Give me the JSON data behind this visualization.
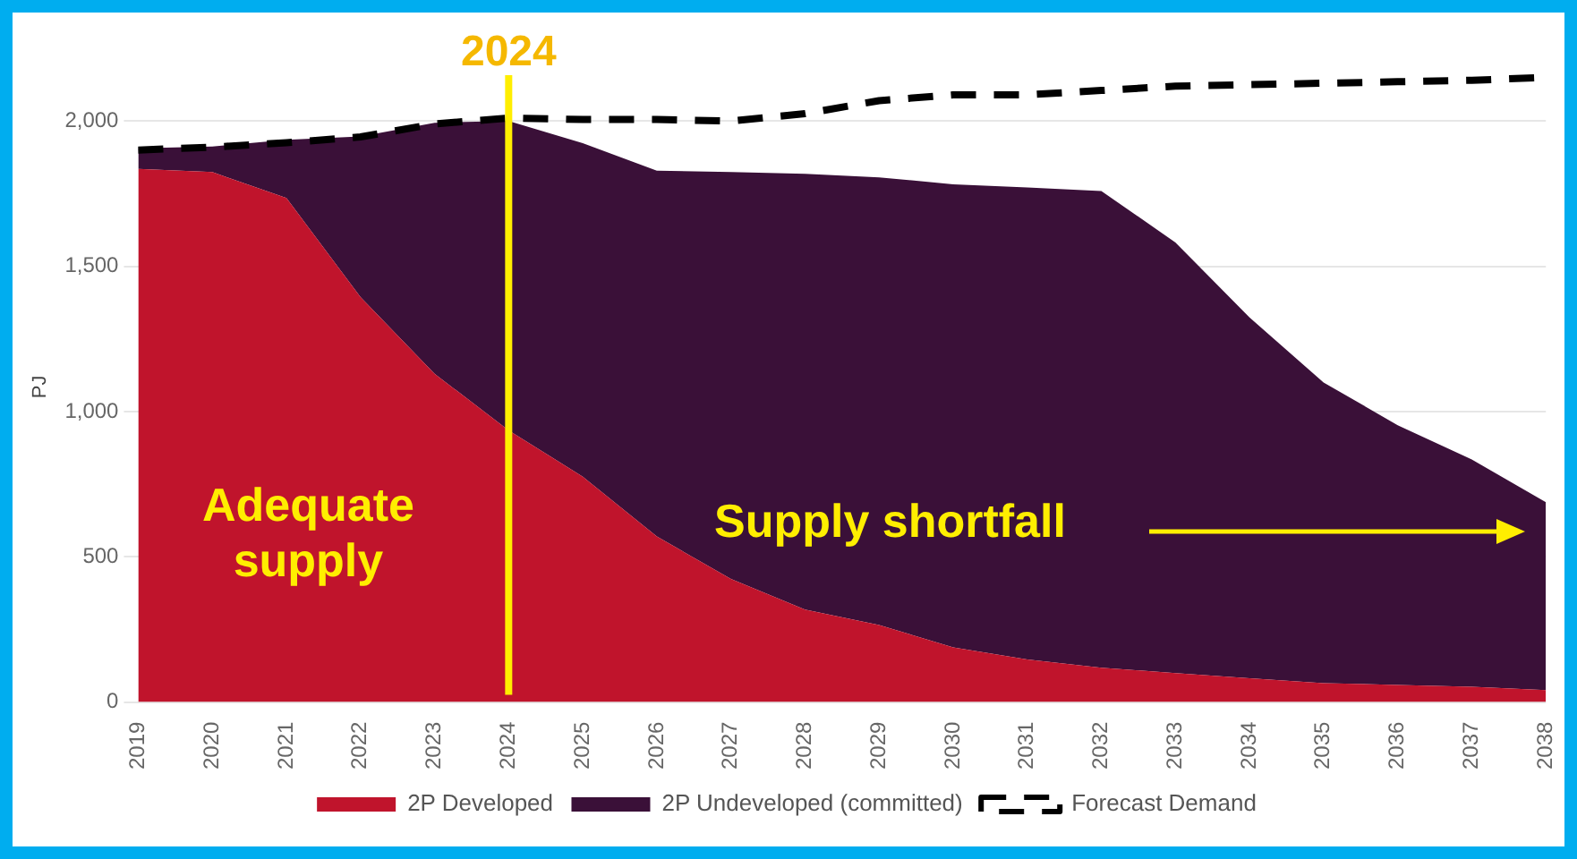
{
  "chart_data": {
    "type": "area",
    "stacked": true,
    "ylabel": "PJ",
    "categories": [
      "2019",
      "2020",
      "2021",
      "2022",
      "2023",
      "2024",
      "2025",
      "2026",
      "2027",
      "2028",
      "2029",
      "2030",
      "2031",
      "2032",
      "2033",
      "2034",
      "2035",
      "2036",
      "2037",
      "2038"
    ],
    "series": [
      {
        "name": "2P Developed",
        "color": "#c0142c",
        "values": [
          1835,
          1824,
          1735,
          1394,
          1130,
          935,
          776,
          570,
          424,
          318,
          265,
          188,
          147,
          118,
          100,
          82,
          65,
          59,
          53,
          41
        ]
      },
      {
        "name": "2P Undeveloped (committed)",
        "color": "#3a1038",
        "values": [
          71,
          88,
          200,
          553,
          864,
          1065,
          1148,
          1259,
          1400,
          1500,
          1541,
          1594,
          1624,
          1641,
          1482,
          1242,
          1035,
          894,
          782,
          647
        ]
      },
      {
        "name": "Forecast Demand",
        "type": "line",
        "color": "#000000",
        "line_style": "dashed",
        "values": [
          1900,
          1910,
          1925,
          1945,
          1990,
          2010,
          2005,
          2005,
          2000,
          2025,
          2070,
          2090,
          2090,
          2105,
          2120,
          2125,
          2130,
          2135,
          2140,
          2150
        ]
      }
    ],
    "ylim": [
      0,
      2170
    ],
    "yticks": [
      0,
      500,
      {
        "value": 1000,
        "label": "1,000"
      },
      {
        "value": 1500,
        "label": "1,500"
      },
      {
        "value": 2000,
        "label": "2,000"
      }
    ],
    "grid": "y",
    "legend": "bottom",
    "ref_lines": [
      {
        "axis": "x",
        "value": "2024",
        "label": "2024",
        "color": "#ffee00"
      }
    ],
    "annotations": [
      "Adequate supply",
      "Supply shortfall"
    ]
  }
}
